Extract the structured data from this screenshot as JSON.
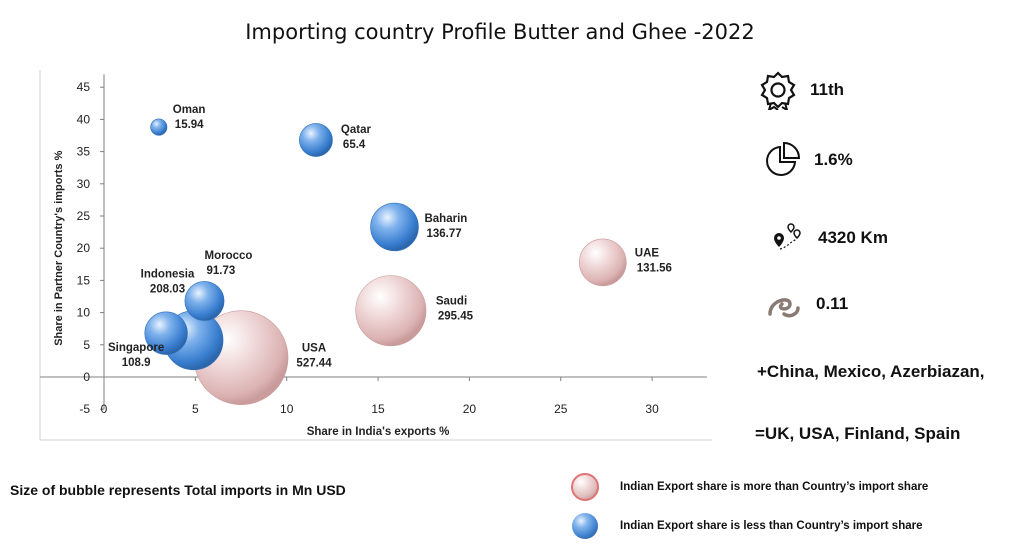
{
  "title": "Importing country Profile Butter and Ghee -2022",
  "chart_data": {
    "type": "scatter",
    "title": "Importing country Profile Butter and Ghee -2022",
    "xlabel": "Share in India's exports %",
    "ylabel": "Share in Partner Country's imports %",
    "xlim": [
      0,
      32
    ],
    "ylim": [
      -5,
      47
    ],
    "xticks": [
      0,
      5,
      10,
      15,
      20,
      25,
      30
    ],
    "yticks": [
      -5,
      0,
      5,
      10,
      15,
      20,
      25,
      30,
      35,
      40,
      45
    ],
    "grid": false,
    "bubble_size": "Total imports in Mn USD",
    "points": [
      {
        "country": "Oman",
        "value": "15.94",
        "x": 3.0,
        "y": 38.8,
        "size": 15.94,
        "color": "blue"
      },
      {
        "country": "Qatar",
        "value": "65.4",
        "x": 11.6,
        "y": 36.8,
        "size": 65.4,
        "color": "blue"
      },
      {
        "country": "Baharin",
        "value": "136.77",
        "x": 15.9,
        "y": 23.3,
        "size": 136.77,
        "color": "blue"
      },
      {
        "country": "UAE",
        "value": "131.56",
        "x": 27.3,
        "y": 17.8,
        "size": 131.56,
        "color": "pink"
      },
      {
        "country": "Morocco",
        "value": "91.73",
        "x": 5.5,
        "y": 11.8,
        "size": 91.73,
        "color": "blue"
      },
      {
        "country": "Indonesia",
        "value": "208.03",
        "x": 4.9,
        "y": 5.7,
        "size": 208.03,
        "color": "blue"
      },
      {
        "country": "Singapore",
        "value": "108.9",
        "x": 3.4,
        "y": 6.8,
        "size": 108.9,
        "color": "blue"
      },
      {
        "country": "Saudi",
        "value": "295.45",
        "x": 15.7,
        "y": 10.3,
        "size": 295.45,
        "color": "pink"
      },
      {
        "country": "USA",
        "value": "527.44",
        "x": 7.5,
        "y": 3.0,
        "size": 527.44,
        "color": "pink"
      }
    ]
  },
  "stats": {
    "rank": "11th",
    "share": "1.6%",
    "distance": "4320 Km",
    "ratio": "0.11"
  },
  "competitors_plus": "+China, Mexico, Azerbiazan,",
  "competitors_equal": "=UK, USA, Finland, Spain",
  "bubble_note": "Size of bubble represents Total imports in Mn USD",
  "legend": {
    "pink": "Indian Export share is more than Country’s import share",
    "blue": "Indian Export share is less than Country’s import share"
  },
  "colors": {
    "pink": "#e8c3c3",
    "blue": "#4a8ed8",
    "axis": "#7f7f7f"
  }
}
